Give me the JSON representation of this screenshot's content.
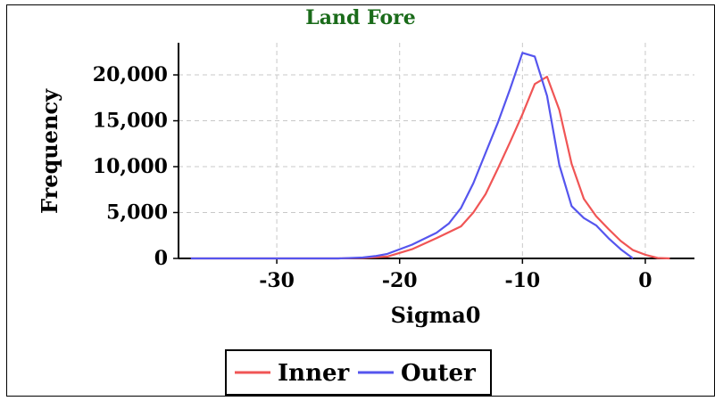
{
  "chart_data": {
    "type": "line",
    "title": "Land Fore",
    "title_color": "#1a6b1a",
    "xlabel": "Sigma0",
    "ylabel": "Frequency",
    "xlim": [
      -38,
      4
    ],
    "ylim": [
      0,
      23500
    ],
    "x_ticks": [
      -30,
      -20,
      -10,
      0
    ],
    "x_tick_labels": [
      "-30",
      "-20",
      "-10",
      "0"
    ],
    "y_ticks": [
      0,
      5000,
      10000,
      15000,
      20000
    ],
    "y_tick_labels": [
      "0",
      "5,000",
      "10,000",
      "15,000",
      "20,000"
    ],
    "grid": true,
    "legend_position": "bottom-center",
    "series": [
      {
        "name": "Inner",
        "color": "#f05555",
        "x": [
          -37,
          -30,
          -25,
          -23,
          -21,
          -19,
          -17,
          -15,
          -14,
          -13,
          -12,
          -11,
          -10,
          -9,
          -8,
          -7,
          -6,
          -5,
          -4,
          -3,
          -2,
          -1,
          0,
          1,
          2
        ],
        "y": [
          0,
          0,
          0,
          50,
          200,
          1000,
          2200,
          3500,
          5000,
          7000,
          9800,
          12700,
          15700,
          19000,
          19800,
          16200,
          10300,
          6500,
          4600,
          3200,
          1900,
          900,
          400,
          50,
          0
        ]
      },
      {
        "name": "Outer",
        "color": "#5555ee",
        "x": [
          -37,
          -30,
          -25,
          -23,
          -22,
          -21,
          -19,
          -17,
          -16,
          -15,
          -14,
          -13,
          -12,
          -11,
          -10,
          -9,
          -8,
          -7,
          -6,
          -5,
          -4,
          -3,
          -2,
          -1
        ],
        "y": [
          0,
          0,
          0,
          100,
          250,
          500,
          1500,
          2800,
          3800,
          5500,
          8200,
          11500,
          14800,
          18500,
          22400,
          22000,
          17700,
          10200,
          5700,
          4400,
          3600,
          2200,
          1000,
          0
        ]
      }
    ]
  }
}
